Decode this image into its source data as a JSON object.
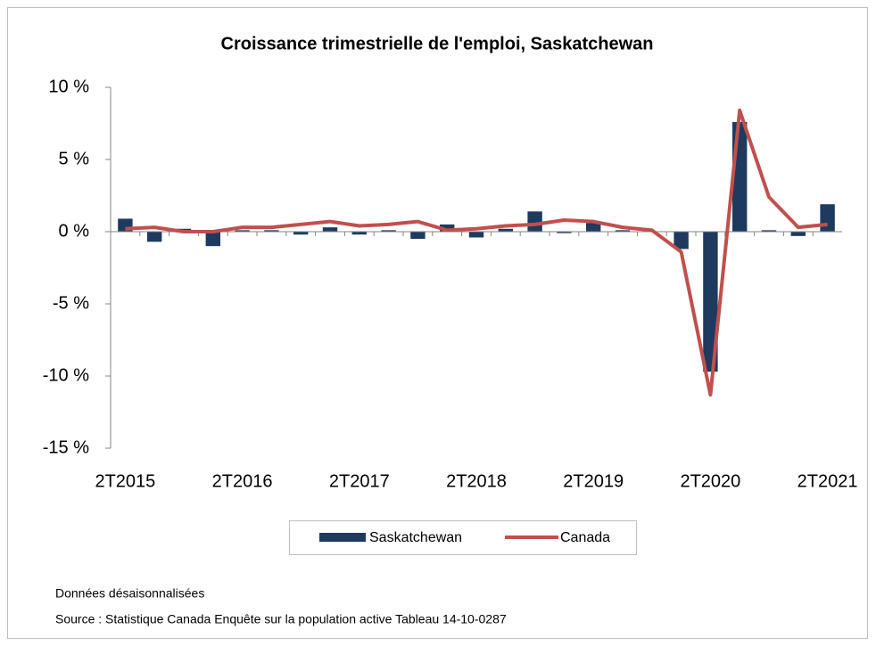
{
  "chart_data": {
    "type": "bar",
    "title": "Croissance trimestrielle de l'emploi, Saskatchewan",
    "categories": [
      "2T2015",
      null,
      null,
      null,
      "2T2016",
      null,
      null,
      null,
      "2T2017",
      null,
      null,
      null,
      "2T2018",
      null,
      null,
      null,
      "2T2019",
      null,
      null,
      null,
      "2T2020",
      null,
      null,
      null,
      "2T2021"
    ],
    "series": [
      {
        "name": "Saskatchewan",
        "type": "bar",
        "color": "#1f3a5f",
        "values": [
          0.9,
          -0.7,
          0.2,
          -1.0,
          0.1,
          0.1,
          -0.2,
          0.3,
          -0.2,
          0.1,
          -0.5,
          0.5,
          -0.4,
          0.2,
          1.4,
          -0.1,
          0.6,
          0.1,
          0.0,
          -1.2,
          -9.7,
          7.6,
          0.1,
          -0.3,
          1.9
        ]
      },
      {
        "name": "Canada",
        "type": "line",
        "color": "#c0504d",
        "values": [
          0.2,
          0.3,
          0.0,
          0.0,
          0.3,
          0.3,
          0.5,
          0.7,
          0.4,
          0.5,
          0.7,
          0.1,
          0.2,
          0.4,
          0.5,
          0.8,
          0.7,
          0.3,
          0.1,
          -1.4,
          -11.3,
          8.4,
          2.4,
          0.3,
          0.5
        ]
      }
    ],
    "ylim": [
      -15,
      10
    ],
    "yticks": [
      {
        "value": -15,
        "label": "-15 %"
      },
      {
        "value": -10,
        "label": "-10 %"
      },
      {
        "value": -5,
        "label": "-5 %"
      },
      {
        "value": 0,
        "label": "0 %"
      },
      {
        "value": 5,
        "label": "5 %"
      },
      {
        "value": 10,
        "label": "10 %"
      }
    ],
    "legend": "bottom",
    "notes": [
      "Données désaisonnalisées",
      "Source : Statistique Canada Enquête sur la population active Tableau 14-10-0287"
    ]
  }
}
